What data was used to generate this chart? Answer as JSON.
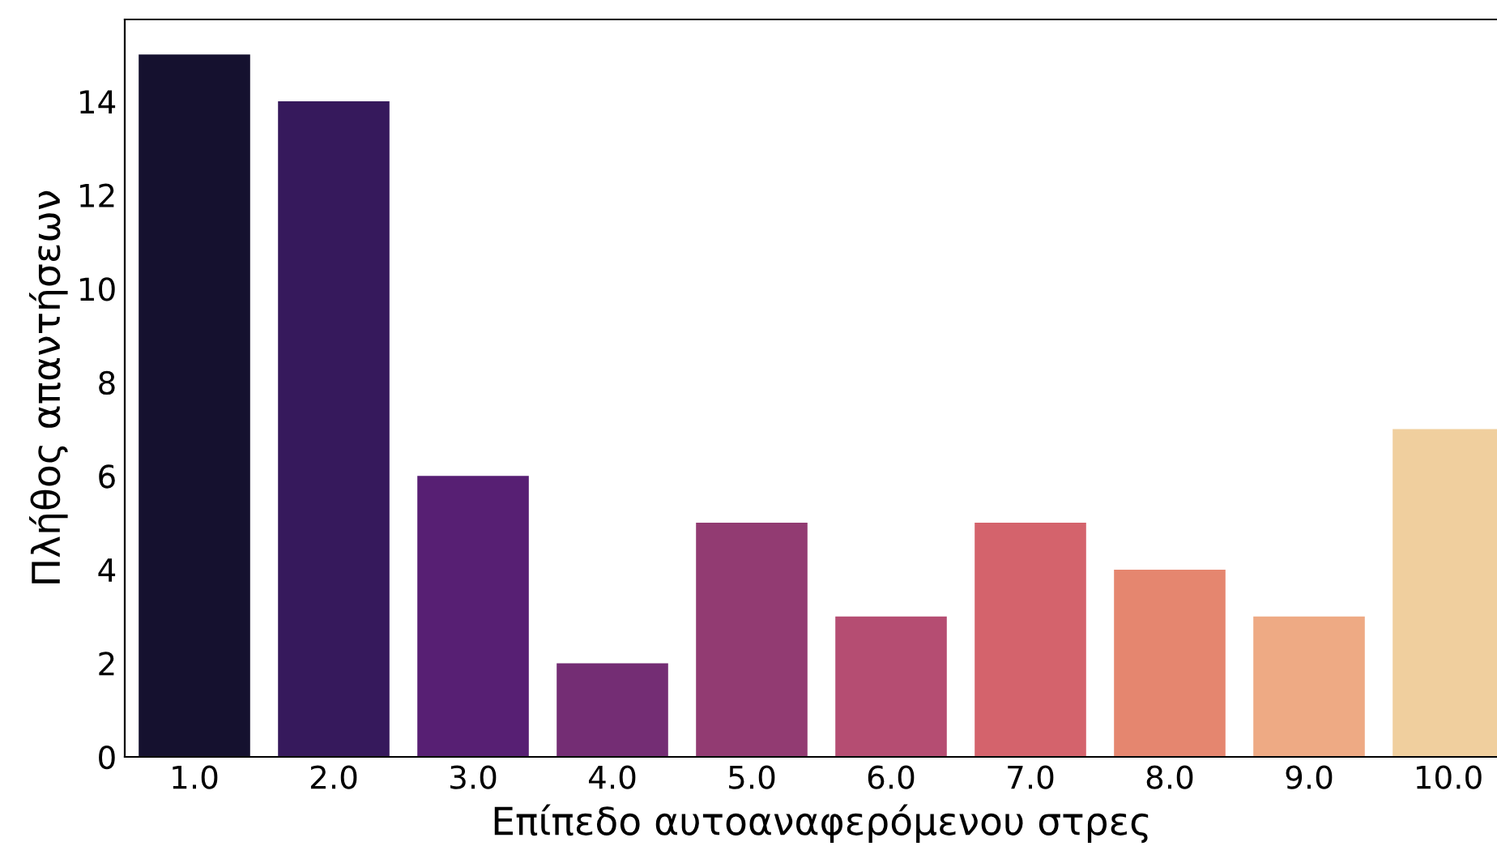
{
  "chart_data": {
    "type": "bar",
    "xlabel": "Επίπεδο αυτοαναφερόμενου στρες",
    "ylabel": "Πλήθος απαντήσεων",
    "categories": [
      "1.0",
      "2.0",
      "3.0",
      "4.0",
      "5.0",
      "6.0",
      "7.0",
      "8.0",
      "9.0",
      "10.0"
    ],
    "values": [
      15,
      14,
      6,
      2,
      5,
      3,
      5,
      4,
      3,
      7
    ],
    "colors": [
      "#15112f",
      "#36195c",
      "#571f73",
      "#742d74",
      "#923b72",
      "#b54d72",
      "#d4636c",
      "#e5866f",
      "#eeaa84",
      "#f0cf9e"
    ],
    "ylim": [
      0,
      15.75
    ],
    "yticks": [
      0,
      2,
      4,
      6,
      8,
      10,
      12,
      14
    ],
    "grid": false,
    "legend": false
  }
}
